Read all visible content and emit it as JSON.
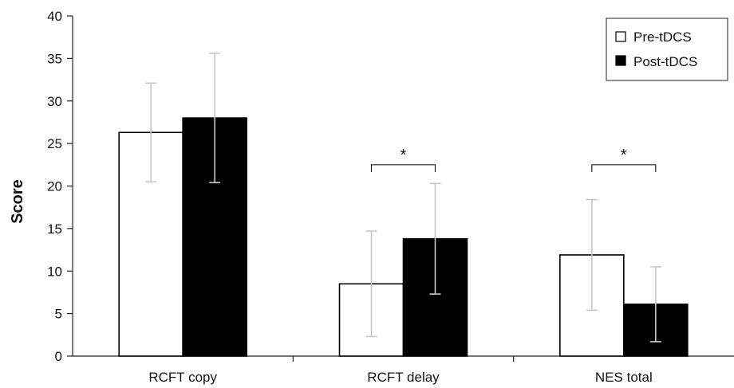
{
  "chart_data": {
    "type": "bar",
    "title": "",
    "xlabel": "",
    "ylabel": "Score",
    "ylim": [
      0,
      40
    ],
    "yticks": [
      0,
      5,
      10,
      15,
      20,
      25,
      30,
      35,
      40
    ],
    "categories": [
      "RCFT copy",
      "RCFT delay",
      "NES total"
    ],
    "series": [
      {
        "name": "Pre-tDCS",
        "values": [
          26.3,
          8.5,
          11.9
        ],
        "error": [
          5.8,
          6.2,
          6.5
        ],
        "fill": "#ffffff"
      },
      {
        "name": "Post-tDCS",
        "values": [
          28.0,
          13.8,
          6.1
        ],
        "error": [
          7.6,
          6.5,
          4.4
        ],
        "fill": "#000000"
      }
    ],
    "legend": {
      "position": "top-right"
    },
    "significance": [
      {
        "category": "RCFT delay",
        "label": "*",
        "level": 22.5
      },
      {
        "category": "NES total",
        "label": "*",
        "level": 22.5
      }
    ],
    "grid": false,
    "colors": {
      "axis": "#222222",
      "bar_stroke": "#000000",
      "errorbar": "#c8c8c8"
    }
  }
}
